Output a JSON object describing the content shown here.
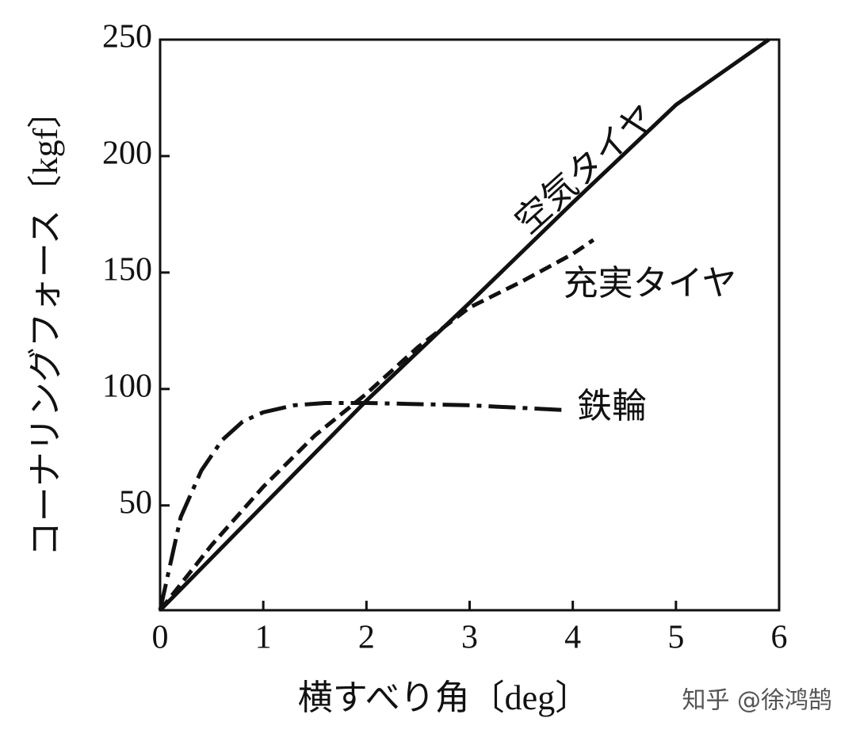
{
  "chart_data": {
    "type": "line",
    "x_label": "横すべり角〔deg〕",
    "y_label": "コーナリングフォース〔kgf〕",
    "watermark": "知乎 @徐鸿鹄",
    "xlim": [
      0,
      6
    ],
    "xticks": [
      0,
      1,
      2,
      3,
      4,
      5,
      6
    ],
    "ylim": [
      5,
      250
    ],
    "yticks": [
      50,
      100,
      150,
      200,
      250
    ],
    "series": [
      {
        "name": "空気タイヤ",
        "color": "#111111",
        "style": "solid",
        "x": [
          0,
          1,
          2,
          3,
          4,
          5,
          5.9
        ],
        "values": [
          5,
          50,
          95,
          137,
          180,
          222,
          250
        ]
      },
      {
        "name": "充実タイヤ",
        "color": "#111111",
        "style": "dashed",
        "x": [
          0,
          0.5,
          1,
          1.5,
          2,
          2.5,
          3,
          3.5,
          4,
          4.2
        ],
        "values": [
          5,
          33,
          58,
          80,
          98,
          118,
          135,
          146,
          158,
          164
        ]
      },
      {
        "name": "鉄輪",
        "color": "#111111",
        "style": "dashdot",
        "x": [
          0,
          0.2,
          0.4,
          0.6,
          0.8,
          1,
          1.3,
          1.6,
          2,
          3,
          3.9
        ],
        "values": [
          5,
          45,
          65,
          78,
          86,
          90,
          93,
          94,
          94,
          93,
          91
        ]
      }
    ]
  }
}
